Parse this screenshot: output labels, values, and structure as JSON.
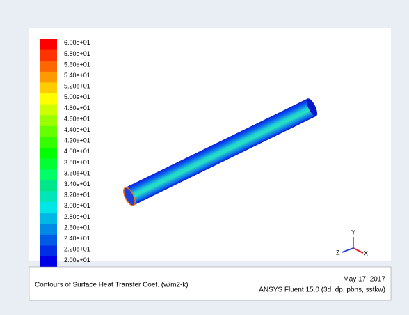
{
  "colorbar": {
    "labels": [
      "6.00e+01",
      "5.80e+01",
      "5.60e+01",
      "5.40e+01",
      "5.20e+01",
      "5.00e+01",
      "4.80e+01",
      "4.60e+01",
      "4.40e+01",
      "4.20e+01",
      "4.00e+01",
      "3.80e+01",
      "3.60e+01",
      "3.40e+01",
      "3.20e+01",
      "3.00e+01",
      "2.80e+01",
      "2.60e+01",
      "2.40e+01",
      "2.20e+01",
      "2.00e+01"
    ]
  },
  "caption": {
    "title": "Contours of Surface Heat Transfer Coef. (w/m2-k)",
    "date": "May 17, 2017",
    "version": "ANSYS Fluent 15.0 (3d, dp, pbns, sstkw)"
  },
  "triad": {
    "y": "Y",
    "z": "Z",
    "x": "X"
  }
}
